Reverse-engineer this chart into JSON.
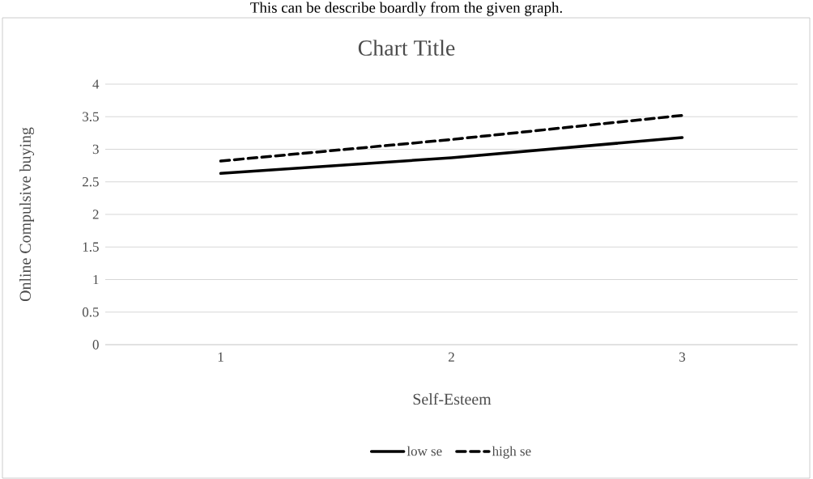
{
  "chart_data": {
    "type": "line",
    "title": "Chart Title",
    "xlabel": "Self-Esteem",
    "ylabel": "Online Compulsive buying",
    "categories": [
      "1",
      "2",
      "3"
    ],
    "series": [
      {
        "name": "low se",
        "color": "#000000",
        "line_style": "solid",
        "values": [
          2.63,
          2.87,
          3.18
        ]
      },
      {
        "name": "high se",
        "color": "#000000",
        "line_style": "dashed",
        "values": [
          2.82,
          3.15,
          3.52
        ]
      }
    ],
    "ylim": [
      0,
      4
    ],
    "yticks": [
      0,
      0.5,
      1,
      1.5,
      2,
      2.5,
      3,
      3.5,
      4
    ],
    "grid": "y",
    "legend": "bottom",
    "annotations": [
      "This can be describe boardly from the given graph."
    ]
  }
}
